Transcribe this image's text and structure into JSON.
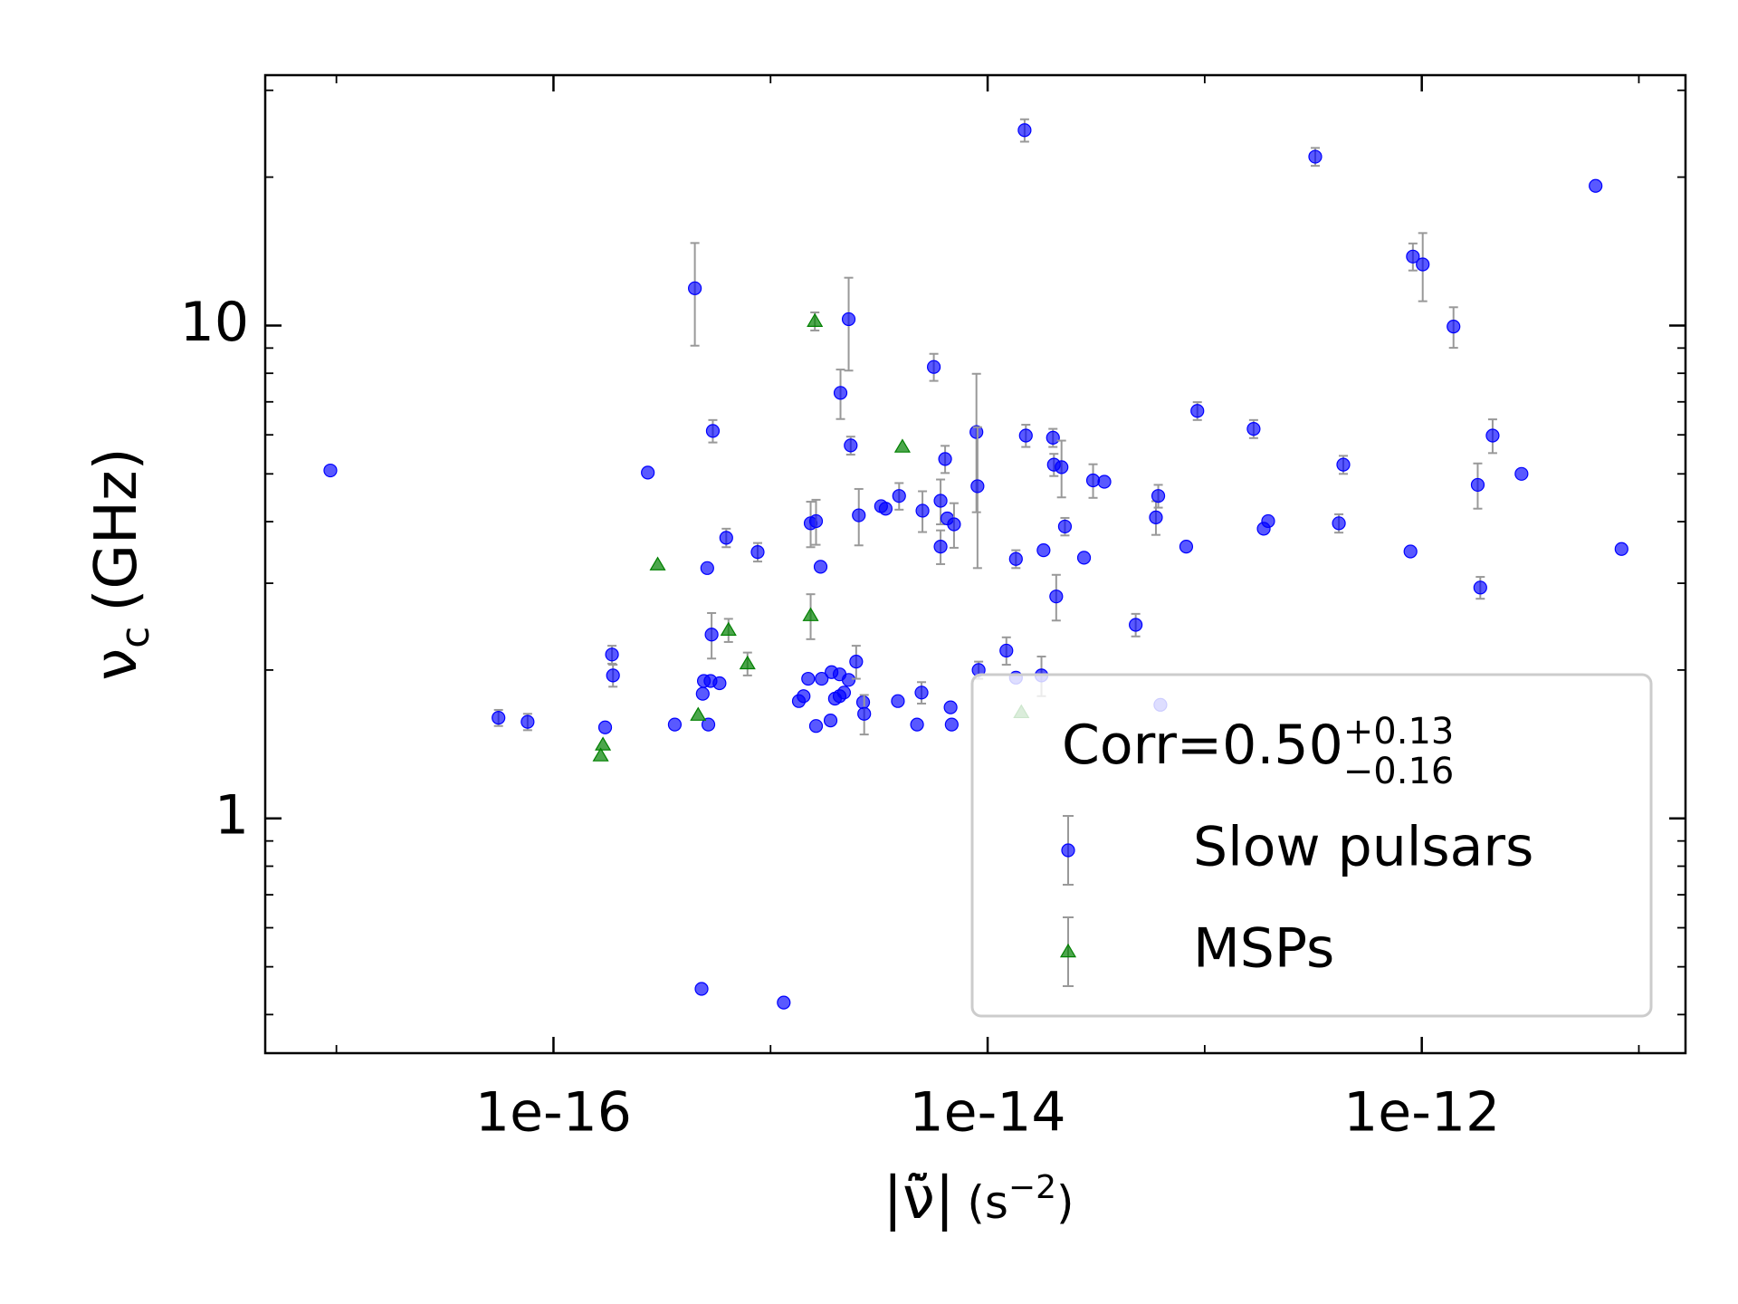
{
  "chart_data": {
    "type": "scatter",
    "xlabel": {
      "symbol": "|ν̃̇|",
      "unit_open": "(s",
      "unit_exponent": "−2",
      "unit_close": ")"
    },
    "ylabel": {
      "symbol": "ν",
      "subscript": "c",
      "unit": "(GHz)"
    },
    "xscale": "log",
    "yscale": "log",
    "xlim": [
      4.7e-18,
      1.64e-11
    ],
    "ylim": [
      0.334,
      32.2
    ],
    "xticks": [
      {
        "value": 1e-16,
        "label": "1e-16"
      },
      {
        "value": 1e-14,
        "label": "1e-14"
      },
      {
        "value": 1e-12,
        "label": "1e-12"
      }
    ],
    "xminorticks": [
      1e-17,
      1e-15,
      1e-13,
      1e-11
    ],
    "yticks": [
      1,
      10
    ],
    "yminorticks": [
      0.4,
      0.5,
      0.6,
      0.7,
      0.8,
      0.9,
      2,
      3,
      4,
      5,
      6,
      7,
      8,
      9,
      20,
      30
    ],
    "legend": "lower right",
    "legend_title": {
      "text": "Corr=0.50",
      "upper": "+0.13",
      "lower": "−0.16"
    },
    "errorbar_color": "#999999",
    "series": [
      {
        "name": "Slow pulsars",
        "color": "#0000ff",
        "marker": "circle",
        "x": [
          9.38e-18,
          5.58e-17,
          7.6e-17,
          1.73e-16,
          1.86e-16,
          1.88e-16,
          2.72e-16,
          3.62e-16,
          4.48e-16,
          4.81e-16,
          4.87e-16,
          4.93e-16,
          5.17e-16,
          5.29e-16,
          5.11e-16,
          5.35e-16,
          5.42e-16,
          5.82e-16,
          6.25e-16,
          8.72e-16,
          1.15e-15,
          1.35e-15,
          1.42e-15,
          1.49e-15,
          1.53e-15,
          1.62e-15,
          1.62e-15,
          1.7e-15,
          1.72e-15,
          1.89e-15,
          1.91e-15,
          1.98e-15,
          2.08e-15,
          2.08e-15,
          2.1e-15,
          2.18e-15,
          2.29e-15,
          2.29e-15,
          2.34e-15,
          2.48e-15,
          2.55e-15,
          2.67e-15,
          2.7e-15,
          3.23e-15,
          3.39e-15,
          3.86e-15,
          3.91e-15,
          4.73e-15,
          4.96e-15,
          5.01e-15,
          5.65e-15,
          6.07e-15,
          6.07e-15,
          6.37e-15,
          6.52e-15,
          6.75e-15,
          6.83e-15,
          7e-15,
          8.88e-15,
          8.98e-15,
          9.09e-15,
          1.22e-14,
          1.35e-14,
          1.35e-14,
          1.48e-14,
          1.5e-14,
          1.77e-14,
          1.81e-14,
          2e-14,
          2.02e-14,
          2.07e-14,
          2.19e-14,
          2.27e-14,
          2.78e-14,
          3.06e-14,
          3.45e-14,
          4.81e-14,
          5.96e-14,
          6.11e-14,
          6.25e-14,
          8.22e-14,
          9.25e-14,
          1.68e-13,
          1.87e-13,
          1.96e-13,
          3.23e-13,
          4.15e-13,
          4.35e-13,
          8.87e-13,
          9.1e-13,
          1.01e-12,
          1.4e-12,
          1.81e-12,
          1.86e-12,
          2.12e-12,
          2.88e-12,
          6.32e-12,
          8.32e-12
        ],
        "values": [
          5.08,
          1.6,
          1.57,
          1.53,
          2.15,
          1.95,
          5.03,
          1.55,
          11.9,
          0.451,
          1.79,
          1.9,
          1.55,
          1.9,
          3.22,
          2.36,
          6.11,
          1.88,
          3.71,
          3.47,
          0.423,
          1.73,
          1.77,
          1.92,
          3.97,
          4.01,
          1.54,
          3.24,
          1.92,
          1.58,
          1.98,
          1.75,
          1.77,
          1.96,
          7.3,
          1.8,
          1.91,
          10.3,
          5.71,
          2.08,
          4.12,
          1.72,
          1.63,
          4.3,
          4.25,
          1.73,
          4.51,
          1.55,
          1.8,
          4.21,
          8.24,
          4.41,
          3.56,
          5.36,
          4.06,
          1.68,
          1.55,
          3.95,
          6.08,
          4.72,
          2.0,
          2.19,
          3.36,
          1.93,
          24.9,
          5.98,
          1.95,
          3.5,
          5.92,
          5.22,
          2.82,
          5.16,
          3.91,
          3.38,
          4.85,
          4.82,
          2.47,
          4.08,
          4.51,
          1.7,
          3.56,
          6.71,
          6.17,
          3.87,
          4.01,
          22.0,
          3.97,
          5.22,
          3.48,
          13.8,
          13.3,
          9.95,
          4.75,
          2.94,
          5.98,
          5.0,
          19.2,
          3.52
        ],
        "yerr": [
          null,
          0.06,
          0.06,
          null,
          0.09,
          0.1,
          null,
          null,
          2.8,
          null,
          null,
          null,
          null,
          null,
          null,
          0.25,
          0.32,
          null,
          0.16,
          0.15,
          null,
          null,
          null,
          null,
          0.42,
          0.42,
          null,
          null,
          null,
          null,
          null,
          null,
          null,
          null,
          0.84,
          null,
          null,
          2.2,
          0.24,
          0.16,
          0.54,
          null,
          0.15,
          null,
          null,
          null,
          0.28,
          null,
          0.09,
          0.4,
          0.52,
          0.46,
          0.28,
          0.34,
          null,
          null,
          null,
          0.41,
          1.9,
          1.5,
          0.08,
          0.14,
          0.14,
          null,
          1.3,
          0.31,
          0.18,
          null,
          0.25,
          0.27,
          0.3,
          0.68,
          0.16,
          null,
          0.38,
          null,
          0.13,
          0.32,
          0.24,
          null,
          null,
          0.28,
          0.26,
          null,
          null,
          0.92,
          0.17,
          0.22,
          null,
          0.87,
          2.1,
          0.94,
          0.5,
          0.15,
          0.47,
          null,
          null,
          null
        ]
      },
      {
        "name": "MSPs",
        "color": "#008000",
        "marker": "triangle",
        "x": [
          1.65e-16,
          1.69e-16,
          3.02e-16,
          4.64e-16,
          6.4e-16,
          7.83e-16,
          1.53e-15,
          1.6e-15,
          4.05e-15,
          1.43e-14
        ],
        "values": [
          1.34,
          1.41,
          3.27,
          1.62,
          2.41,
          2.06,
          2.58,
          10.2,
          5.67,
          1.64
        ],
        "yerr": [
          null,
          null,
          null,
          null,
          0.13,
          0.11,
          0.27,
          0.43,
          null,
          null
        ]
      }
    ]
  }
}
